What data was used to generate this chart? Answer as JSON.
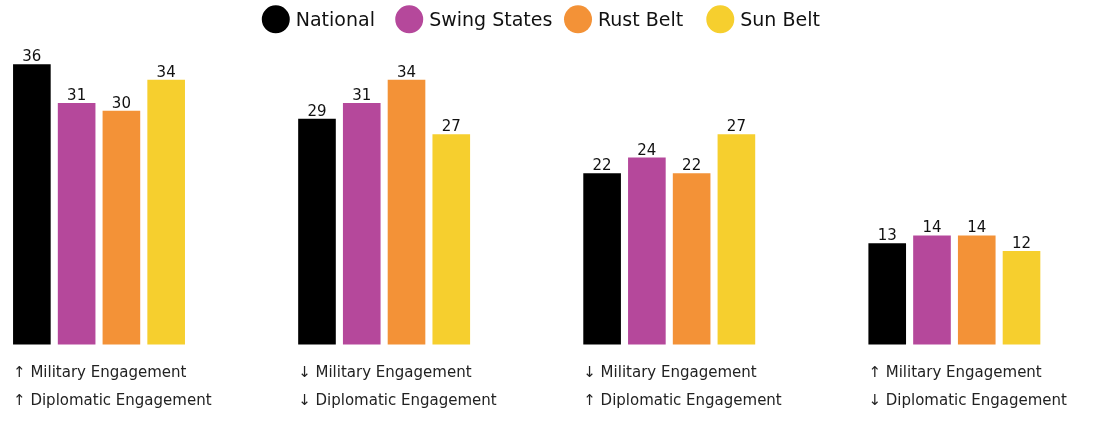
{
  "chart_data": {
    "type": "bar",
    "categories": [
      "↑ Military Engagement\n↑ Diplomatic Engagement",
      "↓ Military Engagement\n↓ Diplomatic Engagement",
      "↓ Military Engagement\n↑ Diplomatic Engagement",
      "↑ Military Engagement\n↓ Diplomatic Engagement"
    ],
    "series": [
      {
        "name": "National",
        "color": "#000000",
        "values": [
          36,
          29,
          22,
          13
        ]
      },
      {
        "name": "Swing States",
        "color": "#b5489b",
        "values": [
          31,
          31,
          24,
          14
        ]
      },
      {
        "name": "Rust Belt",
        "color": "#f39237",
        "values": [
          30,
          34,
          22,
          14
        ]
      },
      {
        "name": "Sun Belt",
        "color": "#f6cf2e",
        "values": [
          34,
          27,
          27,
          12
        ]
      }
    ],
    "data_labels": true,
    "legend": "top",
    "grid": false
  }
}
